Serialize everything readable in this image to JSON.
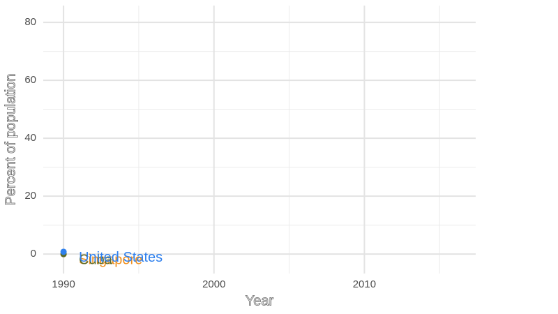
{
  "chart_data": {
    "type": "line",
    "x_label": "Year",
    "y_label": "Percent of population",
    "x": [
      1990
    ],
    "series": [
      {
        "name": "United States",
        "color": "#2f80ed",
        "values": [
          0.8
        ]
      },
      {
        "name": "Cuba",
        "color": "#5a6b2a",
        "values": [
          0
        ]
      },
      {
        "name": "Singapore",
        "color": "#f0901e",
        "values": [
          0
        ]
      }
    ],
    "xlim": [
      1988.65,
      2017.4
    ],
    "ylim": [
      -6.7,
      85.8
    ],
    "xticks": [
      1990,
      2000,
      2010
    ],
    "yticks": [
      0,
      20,
      40,
      60,
      80
    ],
    "xminor": [
      1995,
      2005,
      2015
    ],
    "yminor": [
      10,
      30,
      50,
      70
    ],
    "grid": true
  }
}
